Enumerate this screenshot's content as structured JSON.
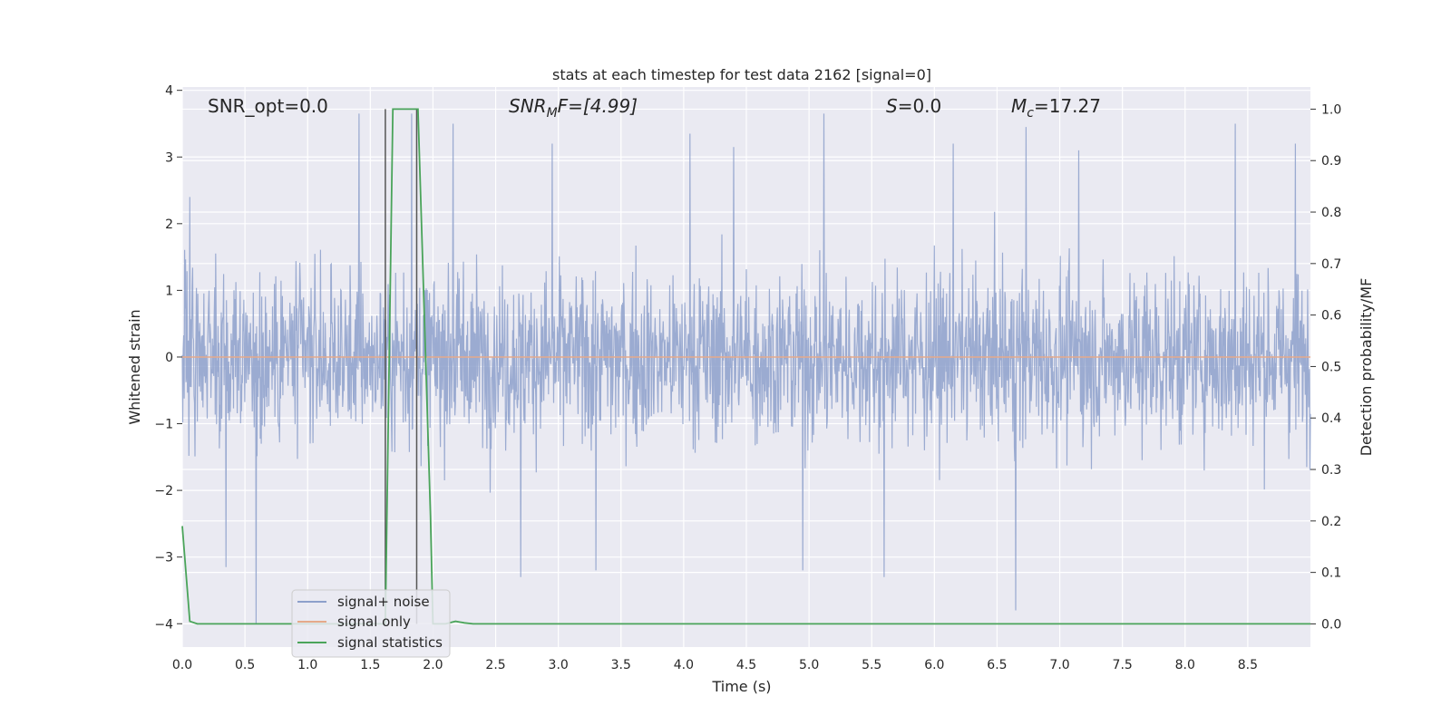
{
  "chart_data": {
    "type": "line",
    "title": "stats at each timestep for test data 2162 [signal=0]",
    "xlabel": "Time (s)",
    "ylabel": "Whitened strain",
    "ylabel_right": "Detection probability/MF",
    "xlim": [
      0,
      9.0
    ],
    "ylim": [
      -4.35,
      4.05
    ],
    "ylim_right": [
      -0.045,
      1.043
    ],
    "x_ticks": [
      "0.0",
      "0.5",
      "1.0",
      "1.5",
      "2.0",
      "2.5",
      "3.0",
      "3.5",
      "4.0",
      "4.5",
      "5.0",
      "5.5",
      "6.0",
      "6.5",
      "7.0",
      "7.5",
      "8.0",
      "8.5"
    ],
    "y_ticks": [
      "−4",
      "−3",
      "−2",
      "−1",
      "0",
      "1",
      "2",
      "3",
      "4"
    ],
    "y_ticks_right": [
      "0.0",
      "0.1",
      "0.2",
      "0.3",
      "0.4",
      "0.5",
      "0.6",
      "0.7",
      "0.8",
      "0.9",
      "1.0"
    ],
    "grid": true,
    "legend_position": "lower-left",
    "annotations": {
      "snr_opt": "SNR_opt=0.0",
      "snr_mf_label": "SNR",
      "snr_mf_sub": "M",
      "snr_mf_rest": "F=[4.99]",
      "s_label": "S",
      "s_rest": "=0.0",
      "mc_label": "M",
      "mc_sub": "c",
      "mc_rest": "=17.27"
    },
    "series": [
      {
        "name": "signal+ noise",
        "color": "#8da0cb",
        "description": "whitened strain noise spanning 0-9 s, amplitude mostly within ±2.2 with peaks to ~3.6 and troughs to ~-4.0",
        "spikes": [
          [
            0.06,
            2.4
          ],
          [
            0.59,
            -4.0
          ],
          [
            1.41,
            3.65
          ],
          [
            1.83,
            3.65
          ],
          [
            2.16,
            3.5
          ],
          [
            2.95,
            3.2
          ],
          [
            4.05,
            3.35
          ],
          [
            4.4,
            3.15
          ],
          [
            4.95,
            -3.2
          ],
          [
            5.12,
            3.65
          ],
          [
            5.6,
            -3.3
          ],
          [
            6.15,
            3.2
          ],
          [
            6.65,
            -3.8
          ],
          [
            6.73,
            3.45
          ],
          [
            7.15,
            3.1
          ],
          [
            8.4,
            3.5
          ],
          [
            8.88,
            3.2
          ],
          [
            2.7,
            -3.3
          ],
          [
            3.3,
            -3.2
          ],
          [
            0.35,
            -3.15
          ]
        ]
      },
      {
        "name": "signal only",
        "color": "#e5a98a",
        "x": [
          0,
          9.0
        ],
        "y": [
          0,
          0
        ]
      },
      {
        "name": "signal statistics",
        "color": "#4aa45a",
        "axis": "right",
        "x": [
          0.0,
          0.06,
          0.12,
          0.2,
          1.6,
          1.62,
          1.68,
          1.88,
          1.98,
          2.0,
          2.1,
          2.18,
          2.25,
          2.32,
          9.0
        ],
        "y": [
          0.19,
          0.005,
          0.0,
          0.0,
          0.0,
          0.0,
          1.0,
          1.0,
          0.21,
          0.0,
          0.0,
          0.005,
          0.002,
          0.0,
          0.0
        ]
      }
    ],
    "vertical_markers": [
      1.62,
      1.87
    ]
  }
}
